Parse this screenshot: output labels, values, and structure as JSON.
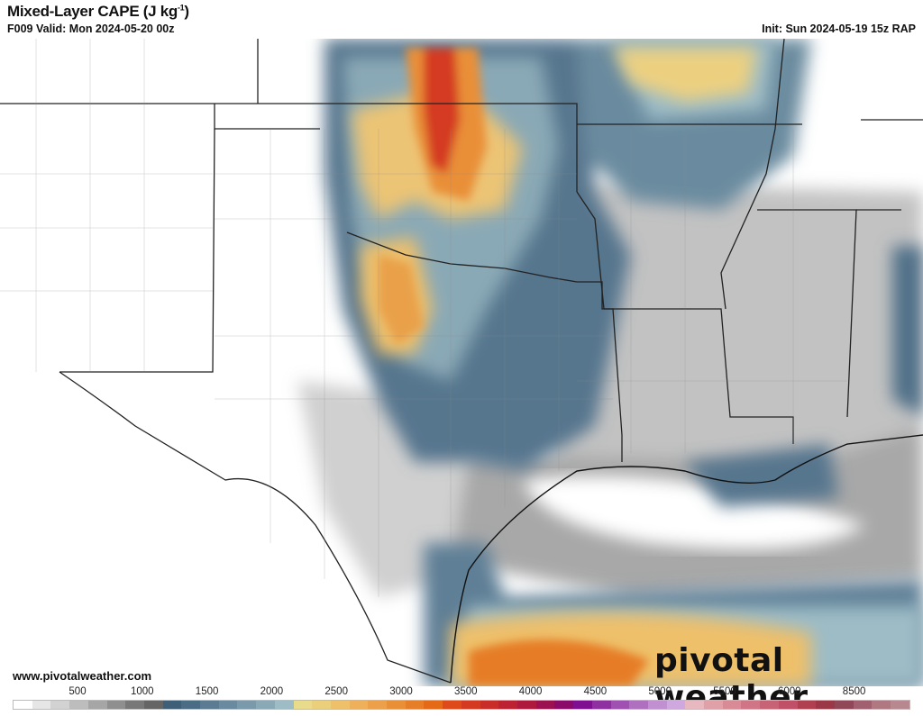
{
  "header": {
    "title": "Mixed-Layer CAPE (J kg",
    "title_sup": "-1",
    "title_close": ")",
    "valid": "F009 Valid: Mon 2024-05-20 00z",
    "init": "Init: Sun 2024-05-19 15z RAP"
  },
  "footer": {
    "url": "www.pivotalweather.com",
    "logo": "pivotal weather"
  },
  "colorbar": {
    "labels": [
      "500",
      "1000",
      "1500",
      "2000",
      "2500",
      "3000",
      "3500",
      "4000",
      "4500",
      "5000",
      "5500",
      "6000",
      "8500"
    ],
    "colors": [
      "#ffffff",
      "#e6e6e6",
      "#d2d2d2",
      "#bdbdbd",
      "#a6a6a6",
      "#8f8f8f",
      "#787878",
      "#656565",
      "#3f5f78",
      "#4a6c85",
      "#5a7b92",
      "#6a8b9f",
      "#7a9aab",
      "#8aa9b6",
      "#9dbcc6",
      "#e8dc8c",
      "#eccf7a",
      "#eec06a",
      "#eeb05a",
      "#eca04a",
      "#e98f38",
      "#e67d27",
      "#e46a18",
      "#de4a1a",
      "#d43a22",
      "#c92d2a",
      "#bd2232",
      "#ad1a3d",
      "#9c1250",
      "#8a0b6a",
      "#7f1090",
      "#8f30a0",
      "#a050b0",
      "#b070c0",
      "#c090d0",
      "#d0a8e0",
      "#e8b8c0",
      "#e0a0a8",
      "#d88a95",
      "#d07585",
      "#c86275",
      "#c05068",
      "#b0404f",
      "#9a3848",
      "#904858",
      "#a06070",
      "#b07880",
      "#b88890"
    ]
  },
  "map": {
    "colors": {
      "low_gray": "#bcbcbc",
      "dark_gray": "#7a7a7a",
      "blue": "#4f6f88",
      "light_blue": "#9dbcc6",
      "yellow": "#ecd080",
      "orange": "#e98f38",
      "red": "#d43a22"
    }
  }
}
